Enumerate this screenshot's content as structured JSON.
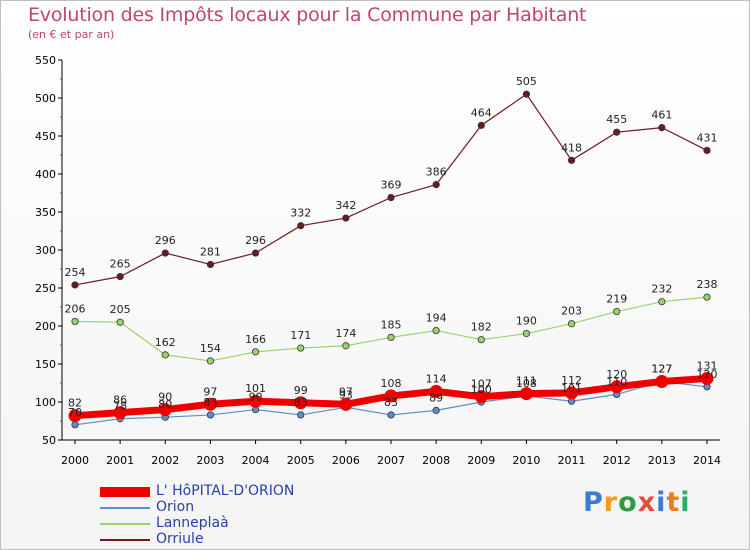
{
  "header": {
    "title": "Evolution des Impôts locaux pour la Commune par Habitant",
    "subtitle": "(en € et par an)"
  },
  "logo": {
    "text": "Proxiti",
    "letter_colors": [
      "#3a7bd5",
      "#f39c12",
      "#2e9b3f",
      "#e74c3c",
      "#3a7bd5",
      "#e67e22",
      "#27ae60"
    ]
  },
  "chart_data": {
    "type": "line",
    "x": [
      "2000",
      "2001",
      "2002",
      "2003",
      "2004",
      "2005",
      "2006",
      "2007",
      "2008",
      "2009",
      "2010",
      "2011",
      "2012",
      "2013",
      "2014"
    ],
    "ylim": [
      50,
      550
    ],
    "yticks": [
      50,
      100,
      150,
      200,
      250,
      300,
      350,
      400,
      450,
      500,
      550
    ],
    "grid": false,
    "legend_position": "bottom-left",
    "series": [
      {
        "name": "Orriule",
        "color": "#6b1a22",
        "line_width": 1.2,
        "values": [
          254,
          265,
          296,
          281,
          296,
          332,
          342,
          369,
          386,
          464,
          505,
          418,
          455,
          461,
          431
        ],
        "labels": [
          "254",
          "265",
          "296",
          "281",
          "296",
          "332",
          "342",
          "369",
          "386",
          "464",
          "505",
          "418",
          "455",
          "461",
          "431"
        ]
      },
      {
        "name": "Lanneplaà",
        "color": "#9ad36b",
        "line_width": 1.2,
        "values": [
          206,
          205,
          162,
          154,
          166,
          171,
          174,
          185,
          194,
          182,
          190,
          203,
          219,
          232,
          238
        ],
        "labels": [
          "206",
          "205",
          "162",
          "154",
          "166",
          "171",
          "174",
          "185",
          "194",
          "182",
          "190",
          "203",
          "219",
          "232",
          "238"
        ]
      },
      {
        "name": "Orion",
        "color": "#5b8fc7",
        "line_width": 1.2,
        "values": [
          70,
          78,
          80,
          83,
          90,
          83,
          93,
          83,
          89,
          100,
          108,
          101,
          110,
          127,
          120
        ],
        "labels": [
          "70",
          "78",
          "80",
          "83",
          "90",
          "83",
          "93",
          "83",
          "89",
          "100",
          "108",
          "101",
          "110",
          "127",
          "120"
        ]
      },
      {
        "name": "L' HôPITAL-D'ORION",
        "color": "#ee0000",
        "line_width": 7,
        "values": [
          82,
          86,
          90,
          97,
          101,
          99,
          97,
          108,
          114,
          107,
          111,
          112,
          120,
          127,
          131
        ],
        "labels": [
          "82",
          "86",
          "90",
          "97",
          "101",
          "99",
          "97",
          "108",
          "114",
          "107",
          "111",
          "112",
          "120",
          "127",
          "131"
        ]
      }
    ]
  },
  "legend": {
    "items": [
      {
        "label": "L' HôPITAL-D'ORION",
        "color": "#ee0000",
        "thickness": 10
      },
      {
        "label": "Orion",
        "color": "#5b8fc7",
        "thickness": 2
      },
      {
        "label": "Lanneplaà",
        "color": "#9ad36b",
        "thickness": 2
      },
      {
        "label": "Orriule",
        "color": "#6b1a22",
        "thickness": 2
      }
    ]
  }
}
